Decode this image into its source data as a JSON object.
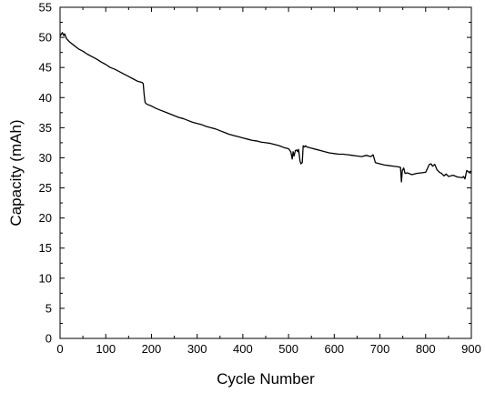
{
  "chart_data": {
    "type": "line",
    "title": "",
    "xlabel": "Cycle Number",
    "ylabel": "Capacity (mAh)",
    "xlim": [
      0,
      900
    ],
    "ylim": [
      0,
      55
    ],
    "xticks": [
      "0",
      "100",
      "200",
      "300",
      "400",
      "500",
      "600",
      "700",
      "800",
      "900"
    ],
    "yticks": [
      "0",
      "5",
      "10",
      "15",
      "20",
      "25",
      "30",
      "35",
      "40",
      "45",
      "50",
      "55"
    ],
    "grid": false,
    "legend": "none",
    "line_color": "#000000",
    "series": [
      {
        "x": [
          0,
          5,
          8,
          10,
          14,
          20,
          30,
          40,
          50,
          60,
          70,
          80,
          90,
          100,
          110,
          120,
          130,
          140,
          150,
          160,
          170,
          180,
          182,
          184,
          186,
          190,
          200,
          210,
          220,
          230,
          240,
          250,
          260,
          270,
          280,
          290,
          300,
          310,
          320,
          330,
          340,
          350,
          360,
          370,
          380,
          390,
          400,
          410,
          420,
          430,
          440,
          450,
          460,
          470,
          480,
          490,
          500,
          505,
          508,
          510,
          512,
          515,
          518,
          520,
          522,
          525,
          527,
          530,
          532,
          535,
          537,
          540,
          550,
          560,
          570,
          580,
          590,
          600,
          610,
          620,
          630,
          640,
          650,
          660,
          670,
          680,
          685,
          690,
          700,
          710,
          720,
          730,
          740,
          745,
          747,
          749,
          752,
          755,
          760,
          770,
          780,
          790,
          800,
          808,
          812,
          815,
          820,
          825,
          830,
          835,
          840,
          845,
          850,
          860,
          870,
          880,
          883,
          886,
          890,
          895,
          900
        ],
        "y": [
          50.2,
          50.8,
          50.3,
          50.6,
          49.8,
          49.3,
          48.7,
          48.1,
          47.7,
          47.2,
          46.8,
          46.4,
          45.9,
          45.5,
          45.0,
          44.7,
          44.3,
          43.9,
          43.5,
          43.1,
          42.7,
          42.5,
          42.3,
          40.5,
          39.2,
          38.9,
          38.6,
          38.2,
          37.9,
          37.6,
          37.3,
          37.0,
          36.7,
          36.5,
          36.2,
          35.9,
          35.7,
          35.5,
          35.2,
          35.0,
          34.8,
          34.5,
          34.2,
          33.9,
          33.7,
          33.5,
          33.3,
          33.1,
          32.9,
          32.8,
          32.6,
          32.5,
          32.4,
          32.2,
          32.0,
          31.7,
          31.5,
          31.0,
          29.8,
          31.0,
          30.3,
          31.2,
          31.3,
          31.0,
          31.4,
          29.5,
          29.0,
          29.2,
          32.0,
          31.8,
          32.0,
          31.8,
          31.6,
          31.4,
          31.2,
          31.0,
          30.8,
          30.7,
          30.6,
          30.6,
          30.5,
          30.4,
          30.3,
          30.2,
          30.4,
          30.2,
          30.5,
          29.2,
          29.0,
          28.8,
          28.7,
          28.6,
          28.5,
          28.4,
          26.0,
          27.9,
          28.3,
          27.4,
          27.5,
          27.2,
          27.4,
          27.5,
          27.6,
          28.9,
          29.0,
          28.6,
          28.9,
          28.0,
          27.6,
          27.4,
          27.0,
          27.3,
          26.9,
          27.1,
          26.8,
          26.7,
          26.9,
          26.5,
          27.9,
          27.6,
          27.8
        ]
      }
    ]
  }
}
